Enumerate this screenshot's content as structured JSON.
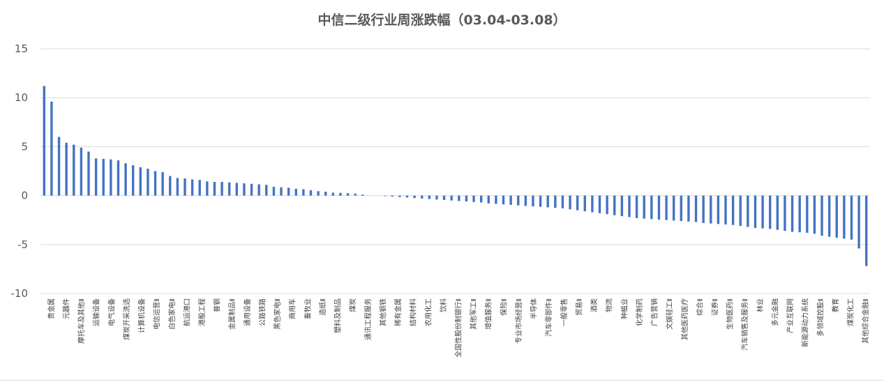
{
  "chart_data": {
    "type": "bar",
    "title": "中信二级行业周涨跌幅（03.04-03.08）",
    "xlabel": "",
    "ylabel": "",
    "ylim": [
      -10,
      15
    ],
    "yticks": [
      15,
      10,
      5,
      0,
      -5,
      -10
    ],
    "grid": true,
    "color": "#4472C4",
    "tick_labels": [
      "贵金属",
      "元器件",
      "摩托车及其他Ⅱ",
      "运输设备",
      "电气设备",
      "煤炭开采洗选",
      "计算机设备",
      "电信运营Ⅱ",
      "白色家电Ⅱ",
      "航运港口",
      "港股工程",
      "普钢",
      "金属制品Ⅱ",
      "通用设备",
      "公路铁路",
      "黑色家电Ⅱ",
      "商用车",
      "畜牧业",
      "造纸Ⅱ",
      "塑料及制品",
      "煤炭",
      "通讯工程服务",
      "其他钢铁",
      "稀有金属",
      "结构材料",
      "农用化工",
      "饮料",
      "全国性股份制银行Ⅱ",
      "其他军工Ⅱ",
      "增值服务Ⅱ",
      "保险Ⅱ",
      "专业市场经营Ⅱ",
      "半导体",
      "汽车零部件Ⅱ",
      "一般零售",
      "贸易Ⅱ",
      "酒类",
      "物流",
      "种植业",
      "化学制药",
      "广告营销",
      "文娱轻工Ⅱ",
      "其他医药医疗",
      "综合Ⅱ",
      "证券Ⅱ",
      "生物医药Ⅱ",
      "汽车销售及服务Ⅱ",
      "林业",
      "多元金融",
      "产业互联网",
      "新能源动力系统",
      "多领域控股Ⅱ",
      "教育",
      "煤炭化工",
      "其他综合金融Ⅱ"
    ],
    "values": [
      11.2,
      9.6,
      6.0,
      5.4,
      5.2,
      4.9,
      4.5,
      3.8,
      3.75,
      3.7,
      3.6,
      3.3,
      3.1,
      2.9,
      2.75,
      2.5,
      2.4,
      2.0,
      1.8,
      1.75,
      1.65,
      1.6,
      1.45,
      1.4,
      1.4,
      1.35,
      1.3,
      1.25,
      1.2,
      1.15,
      1.1,
      0.9,
      0.85,
      0.8,
      0.7,
      0.65,
      0.55,
      0.45,
      0.4,
      0.3,
      0.28,
      0.25,
      0.2,
      0.1,
      0.0,
      0.0,
      -0.05,
      -0.1,
      -0.15,
      -0.2,
      -0.25,
      -0.3,
      -0.35,
      -0.4,
      -0.45,
      -0.5,
      -0.55,
      -0.6,
      -0.65,
      -0.7,
      -0.8,
      -0.85,
      -0.9,
      -0.95,
      -1.0,
      -1.05,
      -1.1,
      -1.15,
      -1.2,
      -1.25,
      -1.3,
      -1.4,
      -1.5,
      -1.6,
      -1.7,
      -1.8,
      -1.9,
      -2.0,
      -2.1,
      -2.2,
      -2.3,
      -2.35,
      -2.4,
      -2.45,
      -2.5,
      -2.55,
      -2.6,
      -2.65,
      -2.7,
      -2.8,
      -2.85,
      -2.9,
      -2.95,
      -3.0,
      -3.1,
      -3.2,
      -3.3,
      -3.35,
      -3.4,
      -3.5,
      -3.6,
      -3.7,
      -3.75,
      -3.8,
      -3.9,
      -4.1,
      -4.2,
      -4.3,
      -4.4,
      -4.5,
      -5.4,
      -7.2
    ]
  }
}
